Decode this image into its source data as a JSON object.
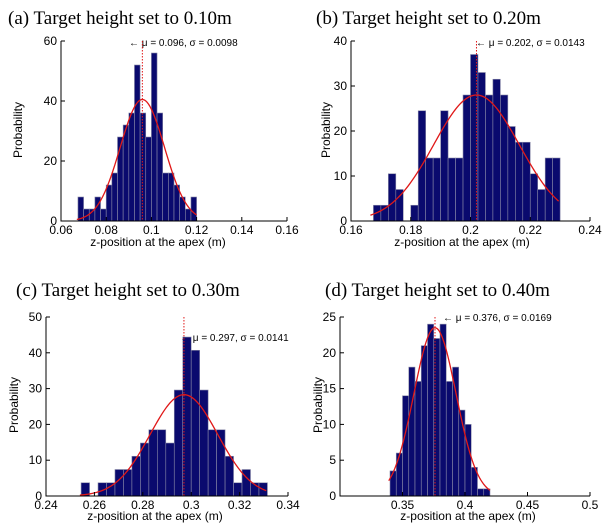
{
  "chart_data": [
    {
      "type": "bar",
      "title": "(a) Target height set to 0.10m",
      "xlabel": "z-position at the apex (m)",
      "ylabel": "Probability",
      "xlim": [
        0.06,
        0.16
      ],
      "ylim": [
        0,
        60
      ],
      "xticks": [
        "0.06",
        "0.08",
        "0.1",
        "0.12",
        "0.14",
        "0.16"
      ],
      "xtick_values": [
        0.06,
        0.08,
        0.1,
        0.12,
        0.14,
        0.16
      ],
      "yticks": [
        "0",
        "20",
        "40",
        "60"
      ],
      "ytick_values": [
        0,
        20,
        40,
        60
      ],
      "bin_width": 0.0025,
      "bins": [
        0.0675,
        0.07,
        0.0725,
        0.075,
        0.0775,
        0.08,
        0.0825,
        0.085,
        0.0875,
        0.09,
        0.0925,
        0.095,
        0.0975,
        0.1,
        0.1025,
        0.105,
        0.1075,
        0.11,
        0.1125,
        0.115,
        0.1175
      ],
      "values": [
        8,
        4,
        4,
        8,
        4,
        12,
        16,
        28,
        32,
        36,
        52,
        36,
        28,
        56,
        36,
        16,
        16,
        12,
        8,
        4,
        8
      ],
      "fit": {
        "mu": 0.096,
        "sigma": 0.0098,
        "peak": 40.5,
        "xrange": [
          0.067,
          0.12
        ]
      },
      "annotation": "← μ = 0.096, σ = 0.0098"
    },
    {
      "type": "bar",
      "title": "(b) Target height set to 0.20m",
      "xlabel": "z-position at the apex (m)",
      "ylabel": "Probability",
      "xlim": [
        0.16,
        0.24
      ],
      "ylim": [
        0,
        40
      ],
      "xticks": [
        "0.16",
        "0.18",
        "0.2",
        "0.22",
        "0.24"
      ],
      "xtick_values": [
        0.16,
        0.18,
        0.2,
        0.22,
        0.24
      ],
      "yticks": [
        "0",
        "10",
        "20",
        "30",
        "40"
      ],
      "ytick_values": [
        0,
        10,
        20,
        30,
        40
      ],
      "bin_width": 0.0025,
      "bins": [
        0.1675,
        0.17,
        0.1725,
        0.175,
        0.1775,
        0.18,
        0.1825,
        0.185,
        0.1875,
        0.19,
        0.1925,
        0.195,
        0.1975,
        0.2,
        0.2025,
        0.205,
        0.2075,
        0.21,
        0.2125,
        0.215,
        0.2175,
        0.22,
        0.2225,
        0.225,
        0.2275
      ],
      "values": [
        3.5,
        3.5,
        10.5,
        7,
        0,
        3.5,
        24.5,
        14,
        14,
        24.5,
        14,
        14,
        28,
        37,
        33,
        28,
        31.5,
        28,
        21,
        17.5,
        17.5,
        10.5,
        7,
        14,
        14
      ],
      "fit": {
        "mu": 0.202,
        "sigma": 0.0143,
        "peak": 28,
        "xrange": [
          0.1665,
          0.2295
        ]
      },
      "annotation": "← μ = 0.202, σ = 0.0143"
    },
    {
      "type": "bar",
      "title": "(c) Target height set to 0.30m",
      "xlabel": "z-position at the apex (m)",
      "ylabel": "Probability",
      "xlim": [
        0.24,
        0.34
      ],
      "ylim": [
        0,
        50
      ],
      "xticks": [
        "0.24",
        "0.26",
        "0.28",
        "0.3",
        "0.32",
        "0.34"
      ],
      "xtick_values": [
        0.24,
        0.26,
        0.28,
        0.3,
        0.32,
        0.34
      ],
      "yticks": [
        "0",
        "10",
        "20",
        "30",
        "40",
        "50"
      ],
      "ytick_values": [
        0,
        10,
        20,
        30,
        40,
        50
      ],
      "bin_width": 0.0035,
      "bins": [
        0.2545,
        0.258,
        0.2615,
        0.265,
        0.2685,
        0.272,
        0.2755,
        0.279,
        0.2825,
        0.286,
        0.2895,
        0.293,
        0.2965,
        0.3,
        0.3035,
        0.307,
        0.3105,
        0.314,
        0.3175,
        0.321,
        0.3245,
        0.328
      ],
      "values": [
        3.7,
        0,
        3.7,
        3.7,
        7.4,
        7.4,
        11.1,
        14.8,
        18.5,
        18.5,
        14.8,
        29.6,
        44.4,
        40.7,
        29.6,
        18.5,
        18.5,
        11.1,
        3.7,
        7.4,
        3.7,
        3.7
      ],
      "fit": {
        "mu": 0.297,
        "sigma": 0.014,
        "peak": 28.3,
        "xrange": [
          0.254,
          0.331
        ]
      },
      "annotation": "← μ = 0.297, σ = 0.0141"
    },
    {
      "type": "bar",
      "title": "(d) Target height set to 0.40m",
      "xlabel": "z-position at the apex (m)",
      "ylabel": "Probability",
      "xlim": [
        0.3,
        0.5
      ],
      "ylim": [
        0,
        25
      ],
      "xticks": [
        "0.35",
        "0.4",
        "0.45",
        "0.5"
      ],
      "xtick_values": [
        0.35,
        0.4,
        0.45,
        0.5
      ],
      "yticks": [
        "0",
        "5",
        "10",
        "15",
        "20",
        "25"
      ],
      "ytick_values": [
        0,
        5,
        10,
        15,
        20,
        25
      ],
      "bin_width": 0.005,
      "bins": [
        0.34,
        0.345,
        0.35,
        0.355,
        0.36,
        0.365,
        0.37,
        0.375,
        0.38,
        0.385,
        0.39,
        0.395,
        0.4,
        0.405,
        0.41,
        0.415
      ],
      "values": [
        3.5,
        6,
        14,
        18,
        16,
        21,
        24,
        22,
        24,
        16,
        18,
        12,
        10,
        4,
        1,
        1
      ],
      "fit": {
        "mu": 0.376,
        "sigma": 0.0169,
        "peak": 23.5,
        "xrange": [
          0.339,
          0.42
        ]
      },
      "annotation": "← μ = 0.376, σ = 0.0169"
    }
  ],
  "colors": {
    "bar_fill": "#0a0a6e",
    "bar_stroke": "#8a8aa8",
    "fit_curve": "#e01818",
    "mean_line": "#e01818",
    "axis": "#000000"
  }
}
